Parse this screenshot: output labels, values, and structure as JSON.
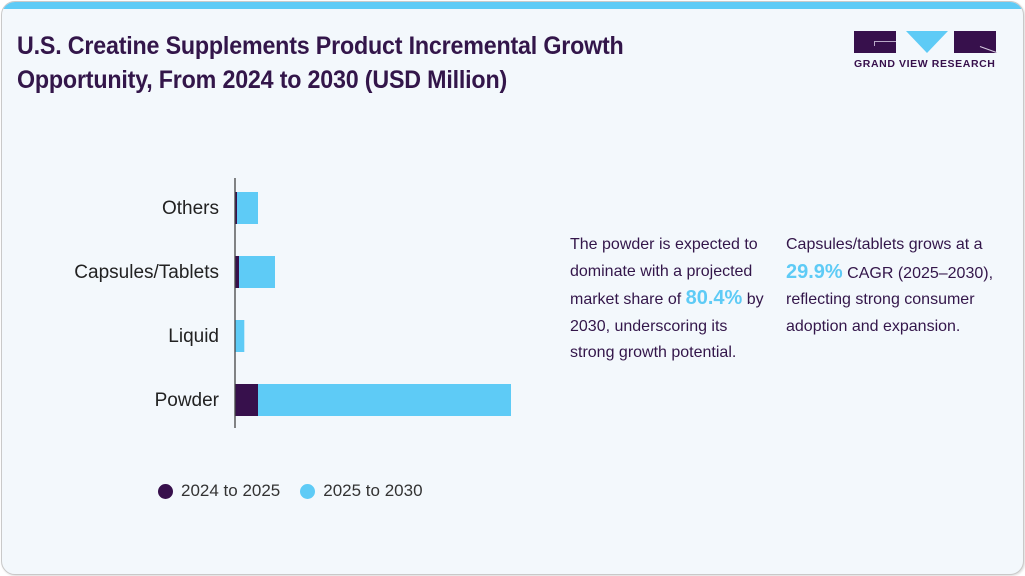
{
  "header": {
    "title": "U.S. Creatine Supplements Product Incremental Growth Opportunity, From 2024 to 2030 (USD Million)",
    "brand_text": "GRAND VIEW RESEARCH"
  },
  "colors": {
    "accent": "#5ecbf6",
    "dark": "#37104c",
    "background": "#f3f8fc",
    "text": "#33164a"
  },
  "notes": {
    "powder": {
      "before": "The powder is expected to dominate with a projected market share of ",
      "highlight": "80.4%",
      "after": " by 2030, underscoring its strong growth potential."
    },
    "capsules": {
      "before": "Capsules/tablets grows at a ",
      "highlight": "29.9%",
      "after": " CAGR (2025–2030), reflecting strong consumer adoption and expansion."
    }
  },
  "legend": [
    {
      "label": "2024 to 2025",
      "color": "#37104c"
    },
    {
      "label": "2025 to 2030",
      "color": "#5ecbf6"
    }
  ],
  "chart_data": {
    "type": "bar",
    "orientation": "horizontal",
    "stacked": true,
    "title": "U.S. Creatine Supplements Product Incremental Growth Opportunity, From 2024 to 2030 (USD Million)",
    "xlabel": "",
    "ylabel": "",
    "categories": [
      "Others",
      "Capsules/Tablets",
      "Liquid",
      "Powder"
    ],
    "series": [
      {
        "name": "2024 to 2025",
        "color": "#37104c",
        "values": [
          2,
          4,
          0.3,
          23
        ]
      },
      {
        "name": "2025 to 2030",
        "color": "#5ecbf6",
        "values": [
          21,
          36,
          9,
          253
        ]
      }
    ],
    "xlim": [
      0,
      276
    ],
    "value_units": "relative (no axis ticks shown; estimated from bar lengths)",
    "grid": false,
    "legend_position": "bottom-left"
  }
}
